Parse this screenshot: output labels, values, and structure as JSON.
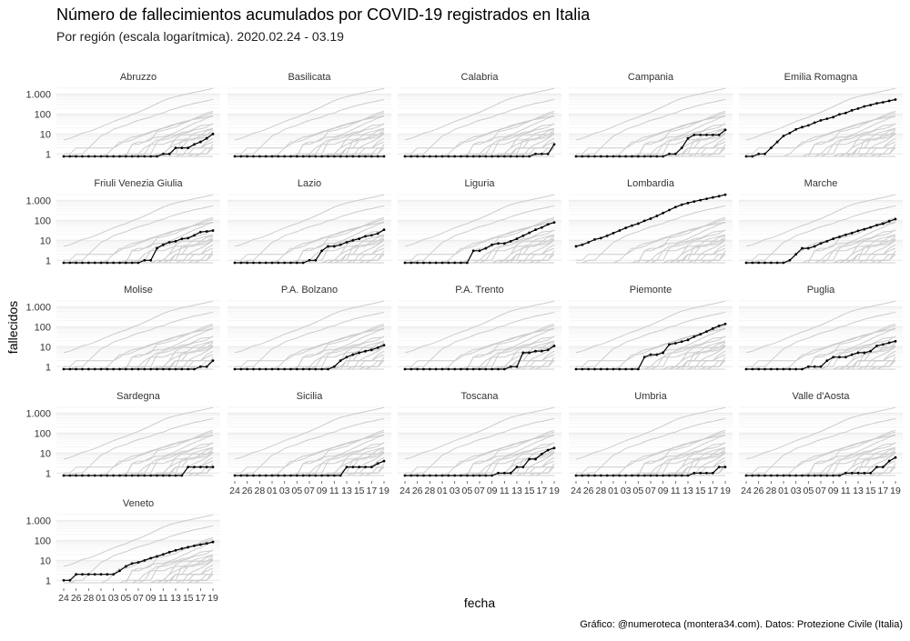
{
  "title": "Número de fallecimientos acumulados por COVID-19 registrados en Italia",
  "subtitle": "Por región (escala logarítmica). 2020.02.24 - 03.19",
  "ylabel": "fallecidos",
  "xlabel": "fecha",
  "caption": "Gráfico: @numeroteca (montera34.com). Datos: Protezione Civile (Italia)",
  "colors": {
    "highlight": "#000000",
    "background_lines": "#cccccc",
    "grid": "#ececec",
    "text": "#333333"
  },
  "chart_data": {
    "type": "line",
    "facet_type": "small-multiples",
    "y_scale": "log",
    "y_ticks": [
      1,
      10,
      100,
      1000
    ],
    "y_tick_labels": [
      "1",
      "10",
      "100",
      "1.000"
    ],
    "x_tick_labels": [
      "24",
      "26",
      "28",
      "01",
      "03",
      "05",
      "07",
      "09",
      "11",
      "13",
      "15",
      "17",
      "19"
    ],
    "dates": [
      "02-24",
      "02-25",
      "02-26",
      "02-27",
      "02-28",
      "02-29",
      "03-01",
      "03-02",
      "03-03",
      "03-04",
      "03-05",
      "03-06",
      "03-07",
      "03-08",
      "03-09",
      "03-10",
      "03-11",
      "03-12",
      "03-13",
      "03-14",
      "03-15",
      "03-16",
      "03-17",
      "03-18",
      "03-19"
    ],
    "series": [
      {
        "name": "Abruzzo",
        "values": [
          0,
          0,
          0,
          0,
          0,
          0,
          0,
          0,
          0,
          0,
          0,
          0,
          0,
          0,
          0,
          0,
          1,
          1,
          2,
          2,
          2,
          3,
          4,
          6,
          10
        ]
      },
      {
        "name": "Basilicata",
        "values": [
          0,
          0,
          0,
          0,
          0,
          0,
          0,
          0,
          0,
          0,
          0,
          0,
          0,
          0,
          0,
          0,
          0,
          0,
          0,
          0,
          0,
          0,
          0,
          0,
          0
        ]
      },
      {
        "name": "Calabria",
        "values": [
          0,
          0,
          0,
          0,
          0,
          0,
          0,
          0,
          0,
          0,
          0,
          0,
          0,
          0,
          0,
          0,
          0,
          0,
          0,
          0,
          0,
          1,
          1,
          1,
          3
        ]
      },
      {
        "name": "Campania",
        "values": [
          0,
          0,
          0,
          0,
          0,
          0,
          0,
          0,
          0,
          0,
          0,
          0,
          0,
          0,
          0,
          1,
          1,
          2,
          6,
          9,
          9,
          9,
          9,
          9,
          16
        ]
      },
      {
        "name": "Emilia Romagna",
        "values": [
          0,
          0,
          1,
          1,
          2,
          4,
          8,
          11,
          17,
          22,
          27,
          37,
          48,
          58,
          70,
          97,
          113,
          154,
          189,
          241,
          284,
          346,
          390,
          458,
          531
        ]
      },
      {
        "name": "Friuli Venezia Giulia",
        "values": [
          0,
          0,
          0,
          0,
          0,
          0,
          0,
          0,
          0,
          0,
          0,
          0,
          0,
          1,
          1,
          4,
          6,
          8,
          9,
          12,
          13,
          18,
          26,
          28,
          31
        ]
      },
      {
        "name": "Lazio",
        "values": [
          0,
          0,
          0,
          0,
          0,
          0,
          0,
          0,
          0,
          0,
          0,
          0,
          1,
          1,
          3,
          5,
          5,
          6,
          8,
          10,
          12,
          16,
          18,
          22,
          34
        ]
      },
      {
        "name": "Liguria",
        "values": [
          0,
          0,
          0,
          0,
          0,
          0,
          0,
          0,
          0,
          0,
          0,
          3,
          3,
          4,
          6,
          7,
          7,
          9,
          12,
          17,
          24,
          34,
          44,
          63,
          79
        ]
      },
      {
        "name": "Lombardia",
        "values": [
          5,
          6,
          8,
          11,
          13,
          17,
          23,
          31,
          42,
          55,
          69,
          95,
          123,
          168,
          235,
          333,
          467,
          617,
          744,
          890,
          1041,
          1218,
          1420,
          1640,
          1959
        ]
      },
      {
        "name": "Marche",
        "values": [
          0,
          0,
          0,
          0,
          0,
          0,
          0,
          1,
          2,
          4,
          4,
          5,
          7,
          9,
          12,
          15,
          19,
          23,
          30,
          36,
          45,
          58,
          69,
          91,
          116
        ]
      },
      {
        "name": "Molise",
        "values": [
          0,
          0,
          0,
          0,
          0,
          0,
          0,
          0,
          0,
          0,
          0,
          0,
          0,
          0,
          0,
          0,
          0,
          0,
          0,
          0,
          0,
          0,
          1,
          1,
          2
        ]
      },
      {
        "name": "P.A. Bolzano",
        "values": [
          0,
          0,
          0,
          0,
          0,
          0,
          0,
          0,
          0,
          0,
          0,
          0,
          0,
          0,
          0,
          0,
          1,
          2,
          3,
          4,
          5,
          6,
          7,
          9,
          12
        ]
      },
      {
        "name": "P.A. Trento",
        "values": [
          0,
          0,
          0,
          0,
          0,
          0,
          0,
          0,
          0,
          0,
          0,
          0,
          0,
          0,
          0,
          0,
          0,
          1,
          1,
          5,
          5,
          6,
          6,
          7,
          11
        ]
      },
      {
        "name": "Piemonte",
        "values": [
          0,
          0,
          0,
          0,
          0,
          0,
          0,
          0,
          0,
          0,
          0,
          3,
          4,
          4,
          5,
          13,
          15,
          18,
          22,
          32,
          42,
          58,
          82,
          111,
          139
        ]
      },
      {
        "name": "Puglia",
        "values": [
          0,
          0,
          0,
          0,
          0,
          0,
          0,
          0,
          0,
          0,
          1,
          1,
          1,
          2,
          3,
          3,
          3,
          4,
          5,
          5,
          6,
          11,
          13,
          16,
          19
        ]
      },
      {
        "name": "Sardegna",
        "values": [
          0,
          0,
          0,
          0,
          0,
          0,
          0,
          0,
          0,
          0,
          0,
          0,
          0,
          0,
          0,
          0,
          0,
          0,
          0,
          0,
          2,
          2,
          2,
          2,
          2
        ]
      },
      {
        "name": "Sicilia",
        "values": [
          0,
          0,
          0,
          0,
          0,
          0,
          0,
          0,
          0,
          0,
          0,
          0,
          0,
          0,
          0,
          0,
          0,
          0,
          2,
          2,
          2,
          2,
          2,
          3,
          4
        ]
      },
      {
        "name": "Toscana",
        "values": [
          0,
          0,
          0,
          0,
          0,
          0,
          0,
          0,
          0,
          0,
          0,
          0,
          0,
          0,
          0,
          1,
          1,
          1,
          2,
          2,
          5,
          5,
          9,
          14,
          18
        ]
      },
      {
        "name": "Umbria",
        "values": [
          0,
          0,
          0,
          0,
          0,
          0,
          0,
          0,
          0,
          0,
          0,
          0,
          0,
          0,
          0,
          0,
          0,
          0,
          0,
          1,
          1,
          1,
          1,
          2,
          2
        ]
      },
      {
        "name": "Valle d'Aosta",
        "values": [
          0,
          0,
          0,
          0,
          0,
          0,
          0,
          0,
          0,
          0,
          0,
          0,
          0,
          0,
          0,
          0,
          1,
          1,
          1,
          1,
          1,
          2,
          2,
          4,
          6
        ]
      },
      {
        "name": "Veneto",
        "values": [
          1,
          1,
          2,
          2,
          2,
          2,
          2,
          2,
          2,
          3,
          5,
          7,
          8,
          10,
          13,
          16,
          20,
          26,
          32,
          39,
          46,
          54,
          62,
          71,
          84
        ]
      }
    ]
  }
}
